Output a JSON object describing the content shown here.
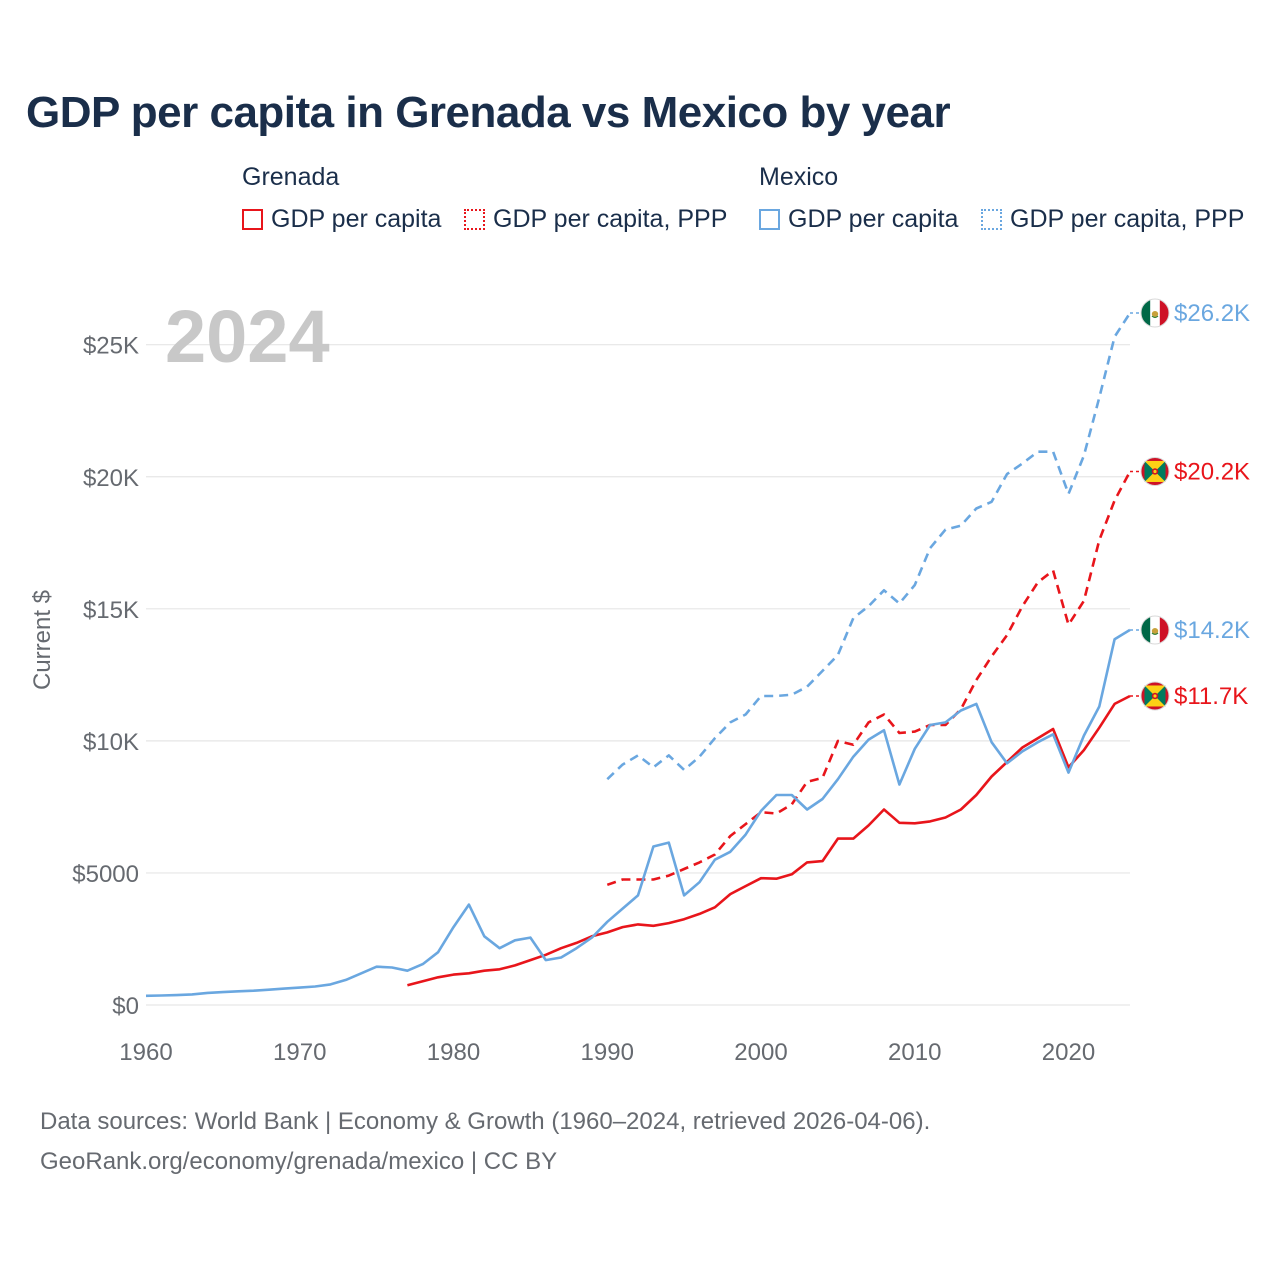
{
  "title": "GDP per capita in Grenada vs Mexico by year",
  "legend": {
    "groups": [
      {
        "name": "Grenada",
        "items": [
          "GDP per capita",
          "GDP per capita, PPP"
        ]
      },
      {
        "name": "Mexico",
        "items": [
          "GDP per capita",
          "GDP per capita, PPP"
        ]
      }
    ]
  },
  "colors": {
    "grenada": "#e8151b",
    "mexico": "#6aa7e0",
    "grid": "#e6e6e6",
    "axis_text": "#666a70",
    "year_watermark": "#c8c8c8"
  },
  "chart_data": {
    "type": "line",
    "title": "GDP per capita in Grenada vs Mexico by year",
    "xlabel": "",
    "ylabel": "Current $",
    "xlim": [
      1960,
      2024
    ],
    "ylim": [
      0,
      26200
    ],
    "x_ticks": [
      1960,
      1970,
      1980,
      1990,
      2000,
      2010,
      2020
    ],
    "x_tick_labels": [
      "1960",
      "1970",
      "1980",
      "1990",
      "2000",
      "2010",
      "2020"
    ],
    "y_ticks": [
      0,
      5000,
      10000,
      15000,
      20000,
      25000
    ],
    "y_tick_labels": [
      "$0",
      "$5000",
      "$10K",
      "$15K",
      "$20K",
      "$25K"
    ],
    "year_label": "2024",
    "series": [
      {
        "name": "Grenada GDP per capita",
        "country": "Grenada",
        "style": "solid",
        "end_label": "$11.7K",
        "x": [
          1977,
          1978,
          1979,
          1980,
          1981,
          1982,
          1983,
          1984,
          1985,
          1986,
          1987,
          1988,
          1989,
          1990,
          1991,
          1992,
          1993,
          1994,
          1995,
          1996,
          1997,
          1998,
          1999,
          2000,
          2001,
          2002,
          2003,
          2004,
          2005,
          2006,
          2007,
          2008,
          2009,
          2010,
          2011,
          2012,
          2013,
          2014,
          2015,
          2016,
          2017,
          2018,
          2019,
          2020,
          2021,
          2022,
          2023,
          2024
        ],
        "values": [
          750,
          900,
          1050,
          1150,
          1200,
          1300,
          1350,
          1500,
          1700,
          1900,
          2150,
          2350,
          2600,
          2750,
          2950,
          3050,
          3000,
          3100,
          3250,
          3450,
          3700,
          4200,
          4500,
          4800,
          4780,
          4950,
          5400,
          5450,
          6300,
          6300,
          6800,
          7400,
          6900,
          6880,
          6950,
          7100,
          7400,
          7950,
          8650,
          9200,
          9750,
          10100,
          10450,
          9000,
          9650,
          10500,
          11400,
          11700
        ]
      },
      {
        "name": "Grenada GDP per capita, PPP",
        "country": "Grenada",
        "style": "dashed",
        "end_label": "$20.2K",
        "x": [
          1990,
          1991,
          1992,
          1993,
          1994,
          1995,
          1996,
          1997,
          1998,
          1999,
          2000,
          2001,
          2002,
          2003,
          2004,
          2005,
          2006,
          2007,
          2008,
          2009,
          2010,
          2011,
          2012,
          2013,
          2014,
          2015,
          2016,
          2017,
          2018,
          2019,
          2020,
          2021,
          2022,
          2023,
          2024
        ],
        "values": [
          4550,
          4750,
          4750,
          4750,
          4900,
          5150,
          5400,
          5700,
          6400,
          6850,
          7300,
          7250,
          7600,
          8450,
          8600,
          10000,
          9850,
          10700,
          11000,
          10300,
          10350,
          10600,
          10600,
          11200,
          12300,
          13200,
          14000,
          15100,
          16000,
          16450,
          14400,
          15300,
          17600,
          19100,
          20200
        ]
      },
      {
        "name": "Mexico GDP per capita",
        "country": "Mexico",
        "style": "solid",
        "end_label": "$14.2K",
        "x": [
          1960,
          1961,
          1962,
          1963,
          1964,
          1965,
          1966,
          1967,
          1968,
          1969,
          1970,
          1971,
          1972,
          1973,
          1974,
          1975,
          1976,
          1977,
          1978,
          1979,
          1980,
          1981,
          1982,
          1983,
          1984,
          1985,
          1986,
          1987,
          1988,
          1989,
          1990,
          1991,
          1992,
          1993,
          1994,
          1995,
          1996,
          1997,
          1998,
          1999,
          2000,
          2001,
          2002,
          2003,
          2004,
          2005,
          2006,
          2007,
          2008,
          2009,
          2010,
          2011,
          2012,
          2013,
          2014,
          2015,
          2016,
          2017,
          2018,
          2019,
          2020,
          2021,
          2022,
          2023,
          2024
        ],
        "values": [
          350,
          360,
          375,
          400,
          460,
          490,
          520,
          540,
          580,
          620,
          660,
          700,
          780,
          950,
          1200,
          1450,
          1420,
          1300,
          1550,
          2000,
          2950,
          3800,
          2600,
          2150,
          2450,
          2550,
          1700,
          1800,
          2150,
          2550,
          3150,
          3650,
          4150,
          6000,
          6150,
          4150,
          4650,
          5500,
          5800,
          6450,
          7350,
          7950,
          7950,
          7400,
          7800,
          8550,
          9400,
          10050,
          10400,
          8350,
          9700,
          10600,
          10700,
          11150,
          11400,
          9950,
          9150,
          9600,
          9950,
          10250,
          8800,
          10200,
          11300,
          13850,
          14200
        ]
      },
      {
        "name": "Mexico GDP per capita, PPP",
        "country": "Mexico",
        "style": "dashed",
        "end_label": "$26.2K",
        "x": [
          1990,
          1991,
          1992,
          1993,
          1994,
          1995,
          1996,
          1997,
          1998,
          1999,
          2000,
          2001,
          2002,
          2003,
          2004,
          2005,
          2006,
          2007,
          2008,
          2009,
          2010,
          2011,
          2012,
          2013,
          2014,
          2015,
          2016,
          2017,
          2018,
          2019,
          2020,
          2021,
          2022,
          2023,
          2024
        ],
        "values": [
          8550,
          9100,
          9450,
          9000,
          9450,
          8900,
          9400,
          10100,
          10700,
          11000,
          11700,
          11700,
          11750,
          12050,
          12650,
          13250,
          14650,
          15100,
          15700,
          15200,
          15900,
          17300,
          18000,
          18150,
          18800,
          19050,
          20100,
          20500,
          20950,
          20950,
          19350,
          20800,
          23000,
          25300,
          26200
        ]
      }
    ]
  },
  "footer": {
    "line1": "Data sources: World Bank | Economy & Growth (1960–2024, retrieved 2026-04-06).",
    "line2": "GeoRank.org/economy/grenada/mexico | CC BY"
  }
}
